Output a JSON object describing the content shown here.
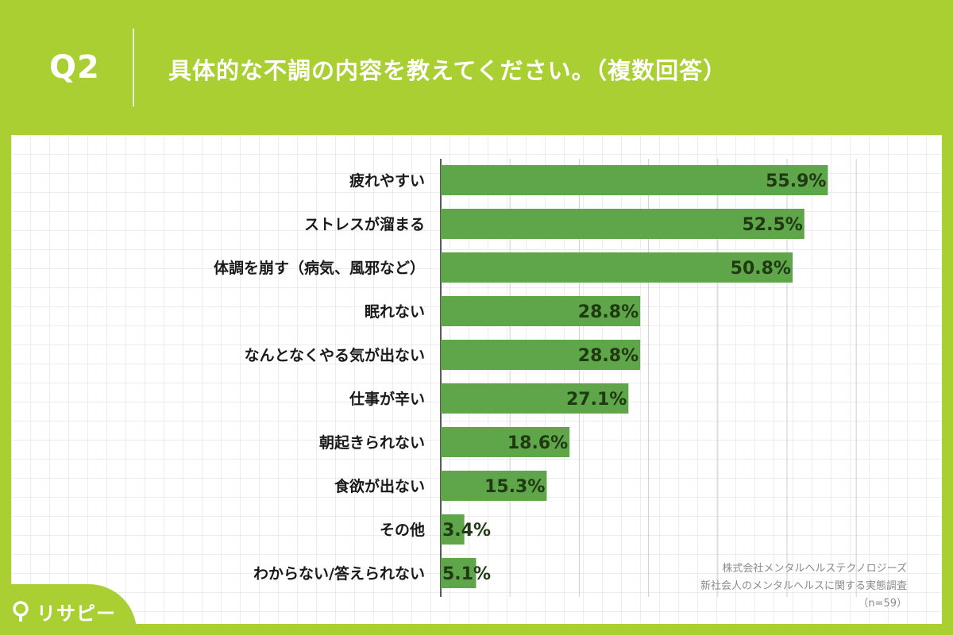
{
  "header": {
    "q_label": "Q2",
    "question": "具体的な不調の内容を教えてください。（複数回答）"
  },
  "colors": {
    "background": "#a9cf33",
    "bar": "#5fa54a",
    "value_text": "#1f3a12"
  },
  "chart_data": {
    "type": "bar",
    "orientation": "horizontal",
    "categories": [
      "疲れやすい",
      "ストレスが溜まる",
      "体調を崩す（病気、風邪など）",
      "眠れない",
      "なんとなくやる気が出ない",
      "仕事が辛い",
      "朝起きられない",
      "食欲が出ない",
      "その他",
      "わからない/答えられない"
    ],
    "values": [
      55.9,
      52.5,
      50.8,
      28.8,
      28.8,
      27.1,
      18.6,
      15.3,
      3.4,
      5.1
    ],
    "value_labels": [
      "55.9%",
      "52.5%",
      "50.8%",
      "28.8%",
      "28.8%",
      "27.1%",
      "18.6%",
      "15.3%",
      "3.4%",
      "5.1%"
    ],
    "xlim": [
      0,
      60
    ],
    "grid": true
  },
  "source": {
    "line1": "株式会社メンタルヘルステクノロジーズ",
    "line2": "新社会人のメンタルヘルスに関する実態調査",
    "line3": "（n=59）"
  },
  "logo": {
    "text": "リサピー",
    "icon": "pin-icon"
  }
}
